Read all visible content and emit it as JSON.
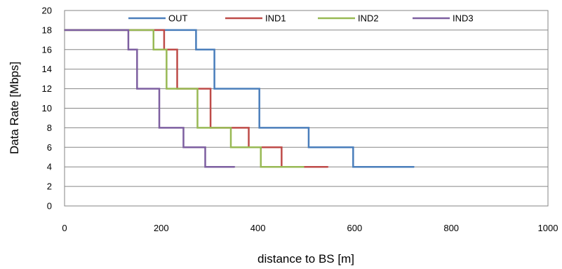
{
  "chart_data": {
    "type": "line",
    "title": "",
    "xlabel": "distance to BS [m]",
    "ylabel": "Data Rate [Mbps]",
    "xlim": [
      0,
      1000
    ],
    "ylim": [
      0,
      20
    ],
    "xticks": [
      0,
      200,
      400,
      600,
      800,
      1000
    ],
    "yticks": [
      0,
      2,
      4,
      6,
      8,
      10,
      12,
      14,
      16,
      18,
      20
    ],
    "grid": "horizontal",
    "legend": "top",
    "step": "post",
    "series": [
      {
        "name": "OUT",
        "color": "#4a7ebb",
        "x": [
          0,
          272,
          310,
          403,
          505,
          597,
          723
        ],
        "y": [
          18,
          16,
          12,
          8,
          6,
          4,
          4
        ]
      },
      {
        "name": "IND1",
        "color": "#be4b48",
        "x": [
          0,
          206,
          233,
          302,
          381,
          449,
          545
        ],
        "y": [
          18,
          16,
          12,
          8,
          6,
          4,
          4
        ]
      },
      {
        "name": "IND2",
        "color": "#98b954",
        "x": [
          0,
          184,
          211,
          275,
          344,
          406,
          495
        ],
        "y": [
          18,
          16,
          12,
          8,
          6,
          4,
          4
        ]
      },
      {
        "name": "IND3",
        "color": "#7d5fa0",
        "x": [
          0,
          132,
          150,
          196,
          246,
          291,
          352
        ],
        "y": [
          18,
          16,
          12,
          8,
          6,
          4,
          4
        ]
      }
    ]
  }
}
